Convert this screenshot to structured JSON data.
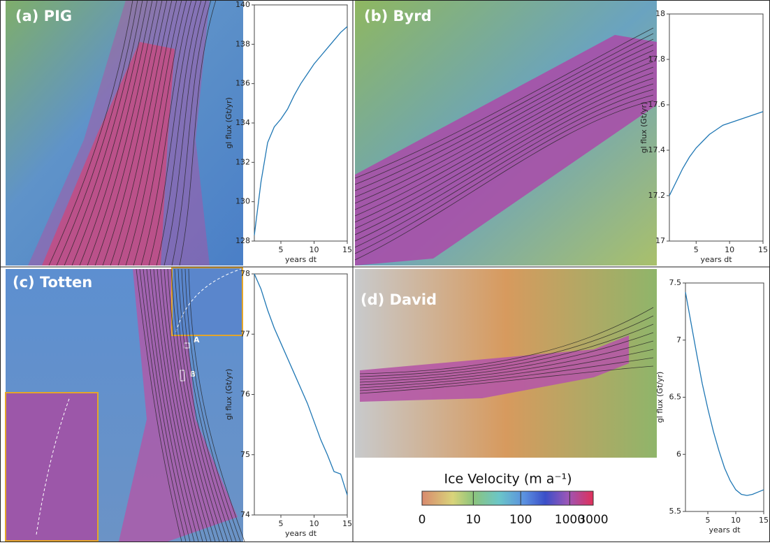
{
  "chart_data": [
    {
      "type": "line",
      "title": "(a) PIG",
      "xlabel": "years dt",
      "ylabel": "gl flux (Gt/yr)",
      "x": [
        1,
        2,
        3,
        4,
        5,
        6,
        7,
        8,
        9,
        10,
        11,
        12,
        13,
        14,
        15
      ],
      "series": [
        {
          "color": "#1f77b4",
          "values": [
            128.3,
            131.0,
            133.0,
            133.8,
            134.2,
            134.7,
            135.4,
            136.0,
            136.5,
            137.0,
            137.4,
            137.8,
            138.2,
            138.6,
            138.9
          ]
        }
      ],
      "xlim": [
        1,
        15
      ],
      "xticks": [
        5,
        10,
        15
      ],
      "ylim": [
        128,
        140
      ],
      "yticks": [
        128,
        130,
        132,
        134,
        136,
        138,
        140
      ]
    },
    {
      "type": "line",
      "title": "(b) Byrd",
      "xlabel": "years dt",
      "ylabel": "gl flux (Gt/yr)",
      "x": [
        1,
        2,
        3,
        4,
        5,
        6,
        7,
        8,
        9,
        10,
        11,
        12,
        13,
        14,
        15
      ],
      "series": [
        {
          "color": "#1f77b4",
          "values": [
            17.2,
            17.26,
            17.32,
            17.37,
            17.41,
            17.44,
            17.47,
            17.49,
            17.51,
            17.52,
            17.53,
            17.54,
            17.55,
            17.56,
            17.57
          ]
        }
      ],
      "xlim": [
        1,
        15
      ],
      "xticks": [
        5,
        10,
        15
      ],
      "ylim": [
        17,
        18
      ],
      "yticks": [
        17,
        17.2,
        17.4,
        17.6,
        17.8,
        18
      ]
    },
    {
      "type": "line",
      "title": "(c) Totten",
      "xlabel": "years dt",
      "ylabel": "gl flux (Gt/yr)",
      "annotations": [
        "A",
        "B"
      ],
      "x": [
        1,
        2,
        3,
        4,
        5,
        6,
        7,
        8,
        9,
        10,
        11,
        12,
        13,
        14,
        15
      ],
      "series": [
        {
          "color": "#1f77b4",
          "values": [
            78.0,
            77.75,
            77.4,
            77.1,
            76.85,
            76.6,
            76.35,
            76.1,
            75.85,
            75.55,
            75.25,
            75.0,
            74.72,
            74.68,
            74.33
          ]
        }
      ],
      "xlim": [
        1,
        15
      ],
      "xticks": [
        5,
        10,
        15
      ],
      "ylim": [
        74,
        78
      ],
      "yticks": [
        74,
        75,
        76,
        77,
        78
      ]
    },
    {
      "type": "line",
      "title": "(d) David",
      "xlabel": "years dt",
      "ylabel": "gl flux (Gt/yr)",
      "x": [
        1,
        2,
        3,
        4,
        5,
        6,
        7,
        8,
        9,
        10,
        11,
        12,
        13,
        14,
        15
      ],
      "series": [
        {
          "color": "#1f77b4",
          "values": [
            7.42,
            7.15,
            6.88,
            6.62,
            6.4,
            6.2,
            6.03,
            5.88,
            5.77,
            5.69,
            5.65,
            5.64,
            5.65,
            5.67,
            5.69
          ]
        }
      ],
      "xlim": [
        1,
        15
      ],
      "xticks": [
        5,
        10,
        15
      ],
      "ylim": [
        5.5,
        7.5
      ],
      "yticks": [
        5.5,
        6,
        6.5,
        7,
        7.5
      ]
    },
    {
      "type": "colorbar",
      "title": "Ice Velocity (m a⁻¹)",
      "scale": "symlog",
      "lim": [
        0,
        3000
      ],
      "ticks": [
        0,
        10,
        100,
        1000,
        3000
      ]
    }
  ]
}
